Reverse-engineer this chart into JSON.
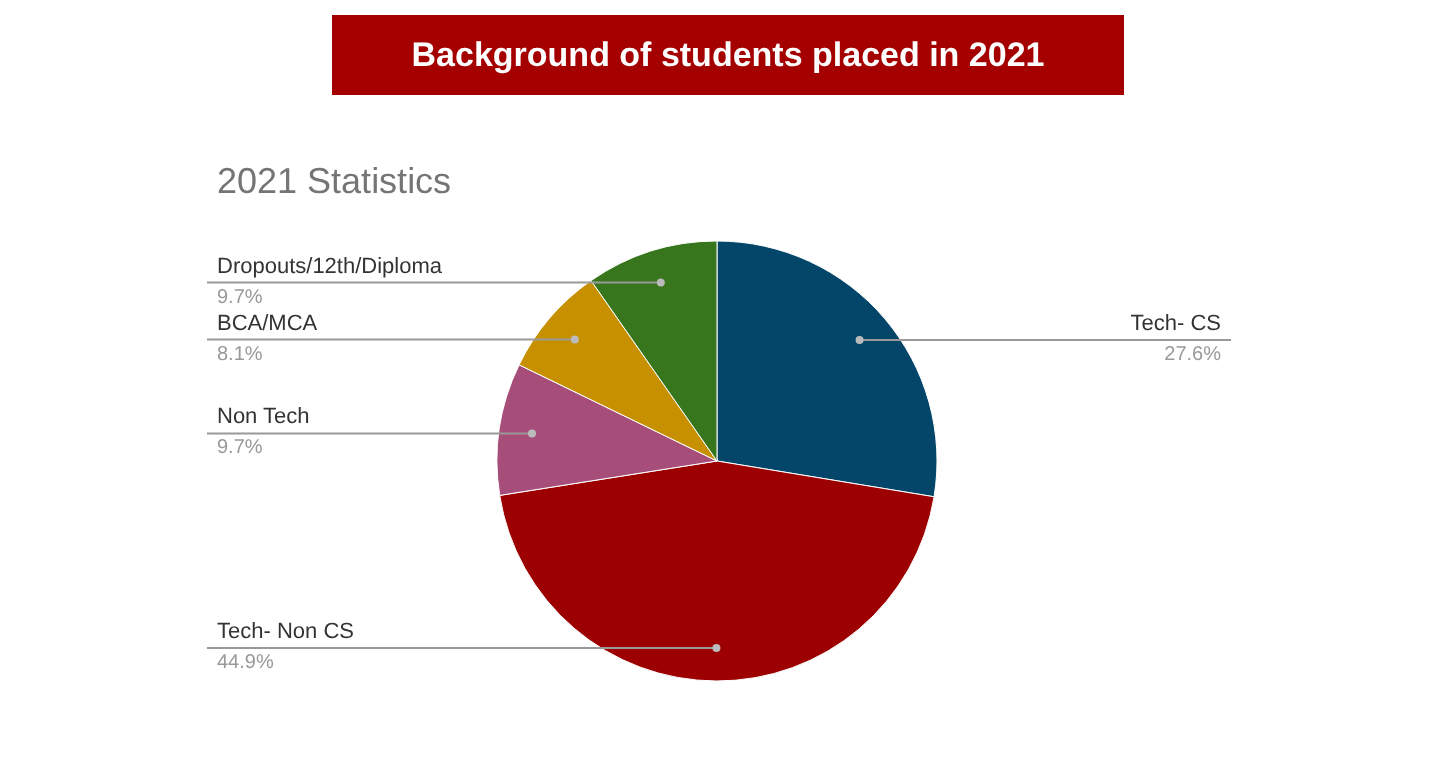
{
  "chart_data": {
    "type": "pie",
    "title": "Background of students placed in 2021",
    "subtitle": "2021 Statistics",
    "categories": [
      "Tech- CS",
      "Tech- Non CS",
      "Non Tech",
      "BCA/MCA",
      "Dropouts/12th/Diploma"
    ],
    "values": [
      27.6,
      44.9,
      9.7,
      8.1,
      9.7
    ],
    "colors": [
      "#03466a",
      "#9c0000",
      "#a64d79",
      "#c69000",
      "#38761d"
    ],
    "value_labels": [
      "27.6%",
      "44.9%",
      "9.7%",
      "8.1%",
      "9.7%"
    ]
  }
}
